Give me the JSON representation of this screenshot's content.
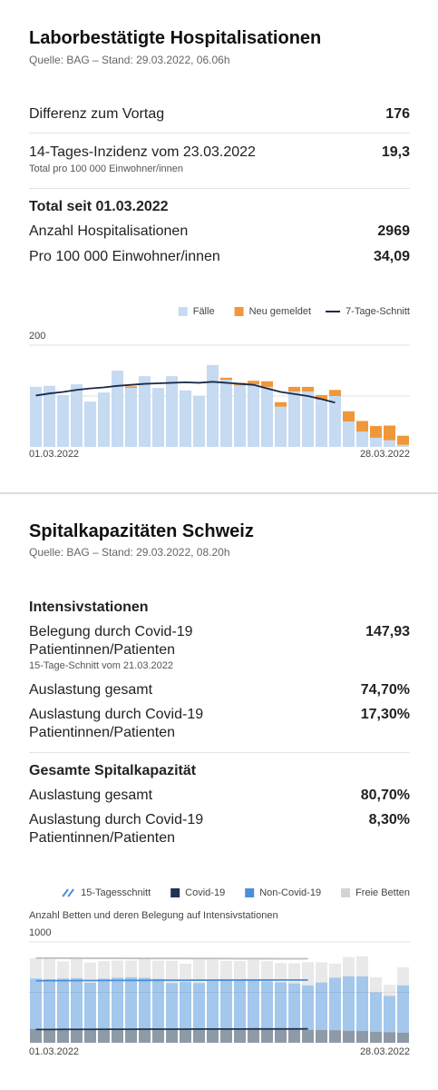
{
  "hospitalisations": {
    "title": "Laborbestätigte Hospitalisationen",
    "source": "Quelle: BAG – Stand: 29.03.2022, 06.06h",
    "rows": [
      {
        "label": "Differenz zum Vortag",
        "value": "176"
      },
      {
        "label": "14-Tages-Inzidenz vom 23.03.2022",
        "note": "Total pro 100 000 Einwohner/innen",
        "value": "19,3"
      }
    ],
    "total_heading": "Total seit 01.03.2022",
    "total_rows": [
      {
        "label": "Anzahl Hospitalisationen",
        "value": "2969"
      },
      {
        "label": "Pro 100 000 Einwohner/innen",
        "value": "34,09"
      }
    ],
    "chart": {
      "type": "bar",
      "stacked": true,
      "categories": [
        "01.03.2022",
        null,
        null,
        null,
        null,
        null,
        null,
        null,
        null,
        null,
        null,
        null,
        null,
        null,
        null,
        null,
        null,
        null,
        null,
        null,
        null,
        null,
        null,
        null,
        null,
        null,
        null,
        "28.03.2022"
      ],
      "series": [
        {
          "name": "Fälle",
          "color": "#c6daf1",
          "values": [
            118,
            120,
            102,
            123,
            89,
            107,
            150,
            116,
            139,
            116,
            139,
            111,
            100,
            161,
            132,
            121,
            123,
            118,
            79,
            109,
            109,
            93,
            100,
            50,
            30,
            18,
            13,
            4
          ]
        },
        {
          "name": "Neu gemeldet",
          "color": "#f0973b",
          "values": [
            0,
            0,
            0,
            0,
            0,
            0,
            0,
            3,
            0,
            0,
            0,
            0,
            0,
            0,
            4,
            5,
            7,
            11,
            9,
            9,
            9,
            9,
            12,
            20,
            21,
            23,
            29,
            18
          ]
        },
        {
          "name": "7-Tage-Schnitt",
          "type": "line",
          "color": "#1a2a48",
          "values": [
            101,
            105,
            108,
            112,
            115,
            117,
            120,
            122,
            124,
            125,
            126,
            127,
            126,
            128,
            126,
            124,
            122,
            115,
            108,
            104,
            100,
            94,
            87,
            null,
            null,
            null,
            null,
            null
          ]
        }
      ],
      "ylim": [
        0,
        200
      ],
      "yticks": [
        200
      ],
      "gridlines": [
        100,
        200
      ]
    }
  },
  "capacity": {
    "title": "Spitalkapazitäten Schweiz",
    "source": "Quelle: BAG – Stand: 29.03.2022, 08.20h",
    "icu_heading": "Intensivstationen",
    "icu_rows": [
      {
        "label": "Belegung durch Covid-19 Patientinnen/Patienten",
        "note": "15-Tage-Schnitt vom 21.03.2022",
        "value": "147,93"
      },
      {
        "label": "Auslastung gesamt",
        "value": "74,70%"
      },
      {
        "label": "Auslastung durch Covid-19 Patientinnen/Patienten",
        "value": "17,30%"
      }
    ],
    "total_heading": "Gesamte Spitalkapazität",
    "total_rows": [
      {
        "label": "Auslastung gesamt",
        "value": "80,70%"
      },
      {
        "label": "Auslastung durch Covid-19 Patientinnen/Patienten",
        "value": "8,30%"
      }
    ],
    "chart": {
      "type": "bar",
      "stacked": true,
      "subtitle": "Anzahl Betten und deren Belegung auf Intensivstationen",
      "categories": [
        "01.03.2022",
        null,
        null,
        null,
        null,
        null,
        null,
        null,
        null,
        null,
        null,
        null,
        null,
        null,
        null,
        null,
        null,
        null,
        null,
        null,
        null,
        null,
        null,
        null,
        null,
        null,
        null,
        "28.03.2022"
      ],
      "average": {
        "name": "15-Tagesschnitt",
        "color": "#4a90d9",
        "lines": [
          {
            "color": "#bdbdbd",
            "values": [
              840,
              840,
              839,
              839,
              838,
              838,
              838,
              837,
              837,
              836,
              836,
              836,
              835,
              835,
              835,
              834,
              834,
              834,
              833,
              833,
              833,
              null,
              null,
              null,
              null,
              null,
              null,
              null
            ]
          },
          {
            "color": "#4a90d9",
            "values": [
              615,
              616,
              616,
              617,
              617,
              618,
              618,
              619,
              619,
              620,
              620,
              620,
              621,
              621,
              621,
              622,
              622,
              622,
              623,
              623,
              623,
              null,
              null,
              null,
              null,
              null,
              null,
              null
            ]
          },
          {
            "color": "#1f3552",
            "values": [
              132,
              132,
              133,
              133,
              133,
              134,
              134,
              134,
              135,
              135,
              135,
              135,
              136,
              136,
              136,
              136,
              137,
              137,
              137,
              137,
              138,
              null,
              null,
              null,
              null,
              null,
              null,
              null
            ]
          }
        ]
      },
      "series": [
        {
          "name": "Covid-19",
          "color": "#1f3552",
          "values": [
            138,
            137,
            137,
            136,
            136,
            135,
            135,
            135,
            134,
            134,
            133,
            133,
            133,
            132,
            132,
            131,
            131,
            130,
            130,
            129,
            129,
            128,
            125,
            120,
            118,
            110,
            105,
            100
          ]
        },
        {
          "name": "Non-Covid-19",
          "color": "#4a90d9",
          "values": [
            500,
            495,
            500,
            505,
            460,
            500,
            510,
            515,
            510,
            500,
            460,
            470,
            460,
            480,
            500,
            490,
            490,
            480,
            470,
            460,
            440,
            470,
            520,
            540,
            540,
            390,
            360,
            470
          ]
        },
        {
          "name": "Freie Betten",
          "color": "#d4d4d4",
          "values": [
            200,
            210,
            170,
            190,
            200,
            175,
            170,
            165,
            190,
            180,
            220,
            180,
            230,
            210,
            180,
            190,
            200,
            200,
            190,
            200,
            230,
            200,
            140,
            190,
            200,
            150,
            110,
            180
          ]
        }
      ],
      "ylim": [
        0,
        1000
      ],
      "yticks": [
        1000
      ],
      "gridlines": [
        500,
        1000
      ]
    }
  }
}
